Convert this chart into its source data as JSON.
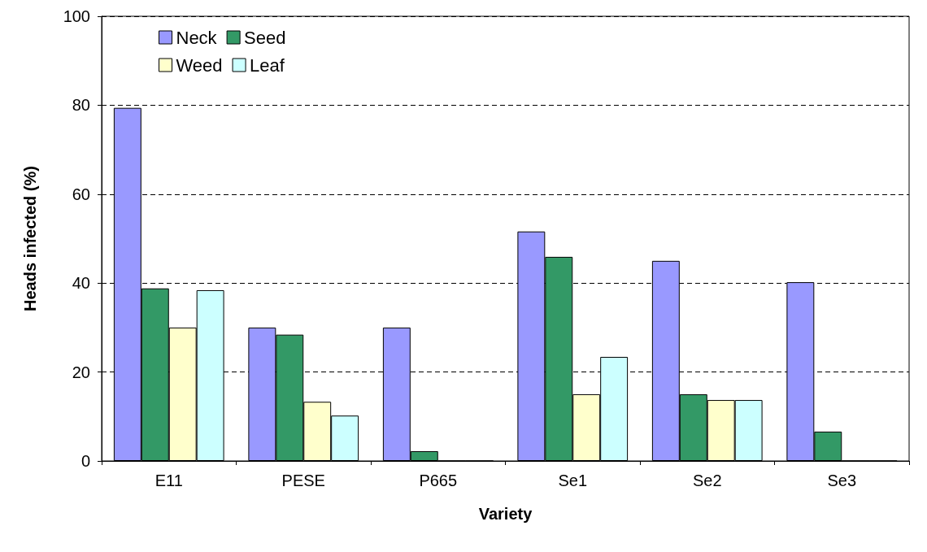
{
  "chart_data": {
    "type": "bar",
    "xlabel": "Variety",
    "ylabel": "Heads infected (%)",
    "categories": [
      "E11",
      "PESE",
      "P665",
      "Se1",
      "Se2",
      "Se3"
    ],
    "series": [
      {
        "name": "Neck",
        "color": "#9999ff",
        "values": [
          79.4,
          30,
          30,
          51.6,
          45,
          40.2
        ]
      },
      {
        "name": "Seed",
        "color": "#339966",
        "values": [
          38.8,
          28.4,
          2.2,
          45.9,
          15,
          6.6
        ]
      },
      {
        "name": "Weed",
        "color": "#ffffcc",
        "values": [
          30,
          13.3,
          0,
          15,
          13.7,
          0
        ]
      },
      {
        "name": "Leaf",
        "color": "#ccffff",
        "values": [
          38.4,
          10.2,
          0,
          23.4,
          13.7,
          0
        ]
      }
    ],
    "ylim": [
      0,
      100
    ],
    "yticks": [
      0,
      20,
      40,
      60,
      80,
      100
    ],
    "grid": "y",
    "legend": "top left"
  }
}
